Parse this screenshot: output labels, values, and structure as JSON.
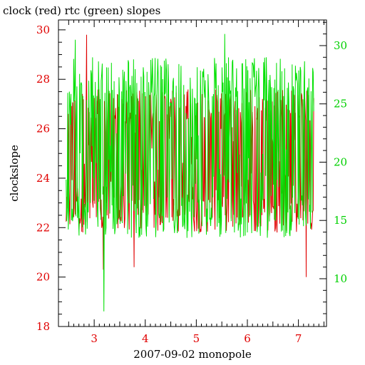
{
  "chart_data": {
    "type": "line",
    "title": "clock (red) rtc (green) slopes",
    "xlabel": "2007-09-02 monopole",
    "ylabel": "clockslope",
    "xlim": [
      2.3,
      7.55
    ],
    "ylim": [
      18,
      30.4
    ],
    "y2lim": [
      5.9,
      32.2
    ],
    "grid": false,
    "x_ticks": [
      "3",
      "4",
      "5",
      "6",
      "7"
    ],
    "y_ticks": [
      "18",
      "20",
      "22",
      "24",
      "26",
      "28",
      "30"
    ],
    "y2_ticks": [
      "10",
      "15",
      "20",
      "25",
      "30"
    ],
    "x_range": [
      2.45,
      7.3
    ],
    "series": [
      {
        "name": "clock",
        "axis": "left",
        "color": "#e00000",
        "band": [
          21.8,
          27.6
        ],
        "extremes": [
          [
            2.85,
            29.8
          ],
          [
            3.18,
            20.3
          ],
          [
            3.78,
            20.4
          ],
          [
            7.15,
            20.0
          ]
        ]
      },
      {
        "name": "rtc",
        "axis": "right",
        "color": "#00e000",
        "band": [
          13.5,
          29.0
        ],
        "extremes": [
          [
            3.19,
            7.2
          ],
          [
            2.63,
            30.5
          ],
          [
            5.56,
            31.0
          ]
        ]
      }
    ]
  },
  "colors": {
    "clock": "#e00000",
    "rtc": "#00e000",
    "frame": "#000000"
  }
}
